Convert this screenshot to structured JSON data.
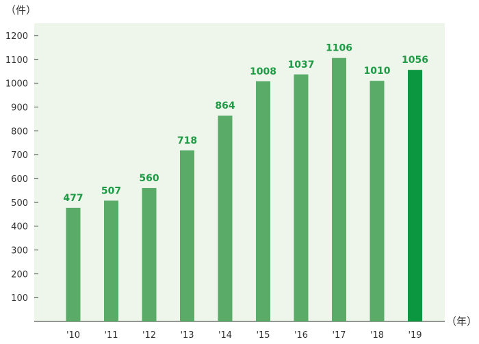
{
  "chart_data": {
    "type": "bar",
    "categories": [
      "'10",
      "'11",
      "'12",
      "'13",
      "'14",
      "'15",
      "'16",
      "'17",
      "'18",
      "'19"
    ],
    "values": [
      477,
      507,
      560,
      718,
      864,
      1008,
      1037,
      1106,
      1010,
      1056
    ],
    "data_labels": [
      "477",
      "507",
      "560",
      "718",
      "864",
      "1008",
      "1037",
      "1106",
      "1010",
      "1056"
    ],
    "y_unit_label": "（件）",
    "x_unit_label": "（年）",
    "ylim": [
      0,
      1250
    ],
    "yticks": [
      100,
      200,
      300,
      400,
      500,
      600,
      700,
      800,
      900,
      1000,
      1100,
      1200
    ],
    "grid": false,
    "colors": {
      "plot_background": "#eef6ec",
      "bar": "#5aab68",
      "bar_highlight": "#0b9640",
      "data_label": "#1e9a45",
      "axis": "#333333"
    },
    "highlight_index": 9
  }
}
